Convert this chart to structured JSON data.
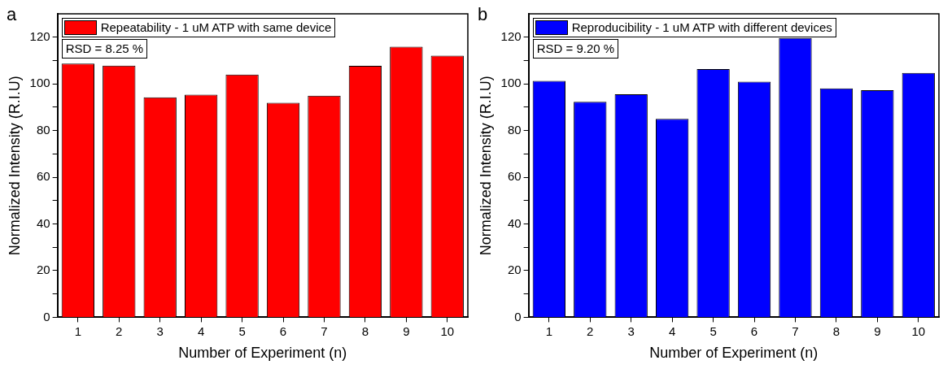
{
  "chart_data": [
    {
      "type": "bar",
      "xlabel": "Number of Experiment (n)",
      "ylabel": "Normalized Intensity (R.I.U)",
      "categories": [
        "1",
        "2",
        "3",
        "4",
        "5",
        "6",
        "7",
        "8",
        "9",
        "10"
      ],
      "series": [
        {
          "name": "Repeatability - 1 uM ATP with same device",
          "color": "#ff0000",
          "values": [
            108.7,
            107.8,
            94.2,
            95.4,
            104.0,
            91.9,
            94.9,
            107.7,
            115.9,
            112.1
          ]
        }
      ],
      "ylim": [
        0,
        130
      ],
      "yticks": [
        0,
        {
          "value": 10,
          "label": null
        },
        20,
        {
          "value": 30,
          "label": null
        },
        40,
        {
          "value": 50,
          "label": null
        },
        60,
        {
          "value": 70,
          "label": null
        },
        80,
        {
          "value": 90,
          "label": null
        },
        100,
        {
          "value": 110,
          "label": null
        },
        120
      ],
      "legend": "top left",
      "grid": false,
      "annotations": [
        "a",
        "RSD = 8.25 %"
      ]
    },
    {
      "type": "bar",
      "xlabel": "Number of Experiment (n)",
      "ylabel": "Normalized Intensity (R.I.U)",
      "categories": [
        "1",
        "2",
        "3",
        "4",
        "5",
        "6",
        "7",
        "8",
        "9",
        "10"
      ],
      "series": [
        {
          "name": "Reproducibility - 1 uM ATP with different devices",
          "color": "#0000ff",
          "values": [
            101.3,
            92.3,
            95.5,
            85.0,
            106.3,
            100.9,
            119.6,
            98.1,
            97.3,
            104.7
          ]
        }
      ],
      "ylim": [
        0,
        130
      ],
      "yticks": [
        0,
        {
          "value": 10,
          "label": null
        },
        20,
        {
          "value": 30,
          "label": null
        },
        40,
        {
          "value": 50,
          "label": null
        },
        60,
        {
          "value": 70,
          "label": null
        },
        80,
        {
          "value": 90,
          "label": null
        },
        100,
        {
          "value": 110,
          "label": null
        },
        120
      ],
      "legend": "top left",
      "grid": false,
      "annotations": [
        "b",
        "RSD = 9.20 %"
      ]
    }
  ]
}
